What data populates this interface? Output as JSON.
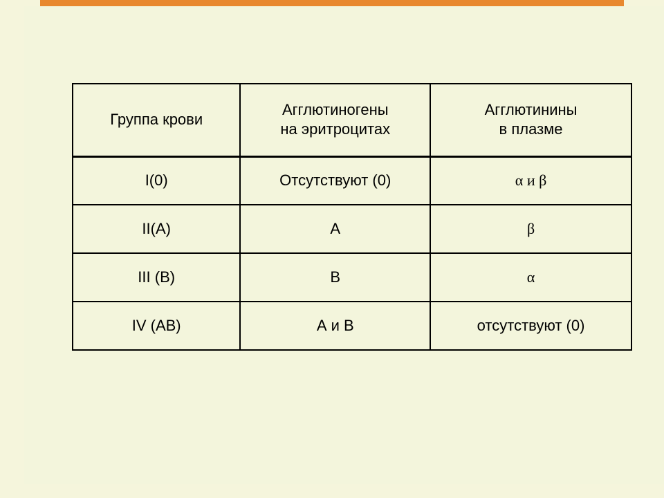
{
  "type": "table",
  "background_color": "#f5f5dc",
  "panel_color": "#f3f5dc",
  "accent_bar_color": "#e8882e",
  "border_color": "#000000",
  "text_color": "#000000",
  "header_fontsize": 22,
  "cell_fontsize": 22,
  "header_row_height": 105,
  "body_row_height": 70,
  "column_widths": [
    "30%",
    "34%",
    "36%"
  ],
  "columns": [
    "Группа крови",
    "Агглютиногены\nна эритроцитах",
    "Агглютинины\nв плазме"
  ],
  "rows": [
    {
      "c1": "I(0)",
      "c2": "Отсутствуют (0)",
      "c3": "α и β"
    },
    {
      "c1": "II(А)",
      "c2": "А",
      "c3": "β"
    },
    {
      "c1": "III (В)",
      "c2": "В",
      "c3": "α"
    },
    {
      "c1": "IV (АВ)",
      "c2": "А и В",
      "c3": "отсутствуют (0)"
    }
  ]
}
